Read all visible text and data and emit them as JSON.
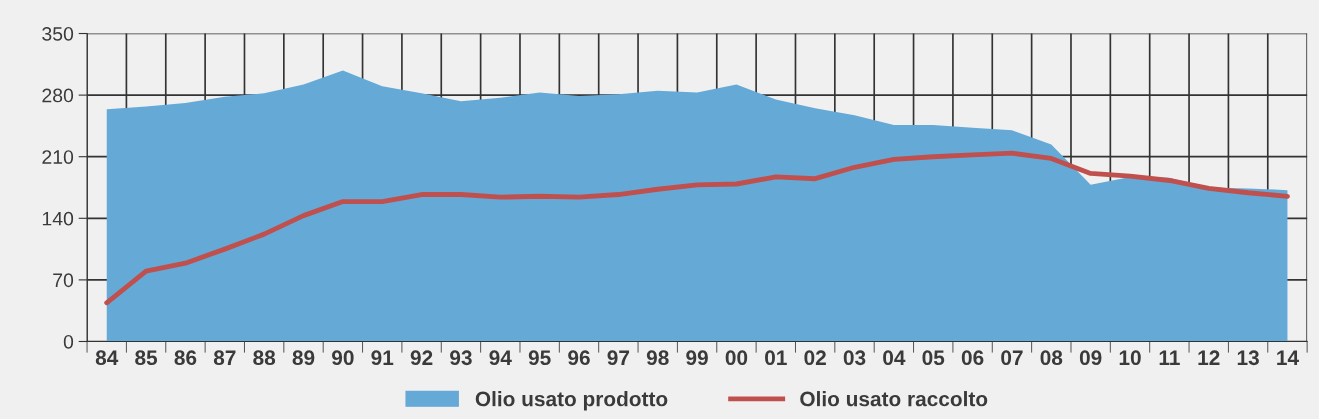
{
  "chart_data": {
    "type": "area",
    "categories": [
      "84",
      "85",
      "86",
      "87",
      "88",
      "89",
      "90",
      "91",
      "92",
      "93",
      "94",
      "95",
      "96",
      "97",
      "98",
      "99",
      "00",
      "01",
      "02",
      "03",
      "04",
      "05",
      "06",
      "07",
      "08",
      "09",
      "10",
      "11",
      "12",
      "13",
      "14"
    ],
    "series": [
      {
        "name": "Olio usato prodotto",
        "color": "#65a9d7",
        "values": [
          264,
          267,
          271,
          278,
          282,
          292,
          308,
          290,
          282,
          273,
          277,
          283,
          279,
          281,
          285,
          283,
          292,
          275,
          265,
          257,
          246,
          246,
          243,
          240,
          224,
          178,
          187,
          186,
          175,
          174,
          172
        ]
      },
      {
        "name": "Olio usato raccolto",
        "type": "line",
        "color": "#c0504d",
        "values": [
          44,
          80,
          89,
          105,
          122,
          143,
          159,
          159,
          167,
          167,
          164,
          165,
          164,
          167,
          173,
          178,
          179,
          187,
          185,
          198,
          207,
          210,
          212,
          214,
          208,
          191,
          188,
          183,
          174,
          169,
          165
        ]
      }
    ],
    "ylim": [
      0,
      350
    ],
    "yticks": [
      0,
      70,
      140,
      210,
      280,
      350
    ],
    "grid": true,
    "legend": "bottom"
  }
}
